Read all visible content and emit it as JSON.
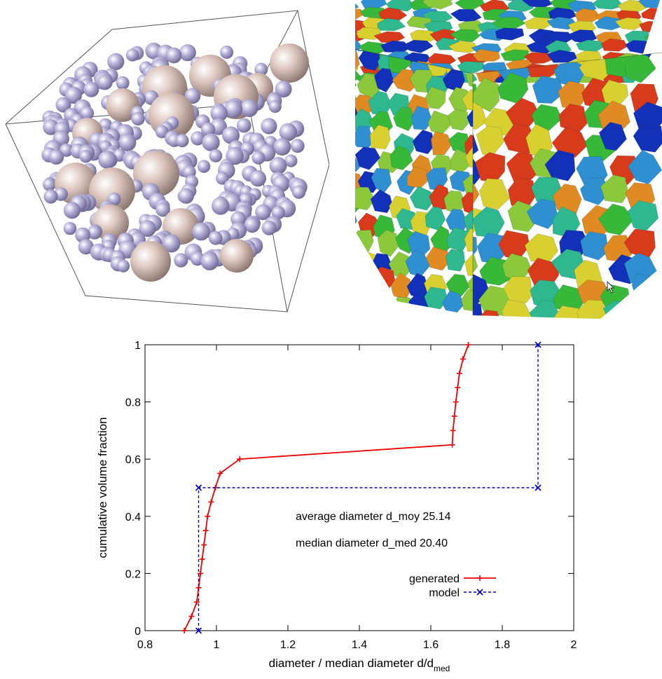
{
  "images": {
    "left": {
      "subject": "sphere-packing-3d-view",
      "colors": {
        "large": "#dcc4bc",
        "small": "#b4b0d8",
        "box": "#555555"
      }
    },
    "right": {
      "subject": "polycrystal-grain-cube",
      "colors": [
        "#1230b8",
        "#2f8fd0",
        "#2fb890",
        "#38b838",
        "#8cc83c",
        "#d8d030",
        "#e08a24",
        "#d83a1c"
      ]
    }
  },
  "chart_data": {
    "type": "line",
    "title": "",
    "xlabel": "diameter / median diameter d/d",
    "xlabel_sub": "med",
    "ylabel": "cumulative volume fraction",
    "xlim": [
      0.8,
      2
    ],
    "ylim": [
      0,
      1
    ],
    "xticks": [
      0.8,
      1,
      1.2,
      1.4,
      1.6,
      1.8,
      2
    ],
    "yticks": [
      0,
      0.2,
      0.4,
      0.6,
      0.8,
      1
    ],
    "xtick_labels": [
      "0.8",
      "1",
      "1.2",
      "1.4",
      "1.6",
      "1.8",
      "2"
    ],
    "ytick_labels": [
      "0",
      "0.2",
      "0.4",
      "0.6",
      "0.8",
      "1"
    ],
    "grid": false,
    "legend_position": "lower-right",
    "annotations": [
      "average diameter  d_moy 25.14",
      "median diameter  d_med 20.40"
    ],
    "series": [
      {
        "name": "generated",
        "color": "#ee0000",
        "style": "solid",
        "marker": "plus",
        "x": [
          0.91,
          0.93,
          0.945,
          0.95,
          0.955,
          0.96,
          0.965,
          0.97,
          0.975,
          0.985,
          0.997,
          1.01,
          1.065,
          1.66,
          1.662,
          1.666,
          1.67,
          1.675,
          1.68,
          1.69,
          1.705
        ],
        "y": [
          0.0,
          0.05,
          0.1,
          0.15,
          0.2,
          0.25,
          0.3,
          0.35,
          0.4,
          0.45,
          0.5,
          0.55,
          0.6,
          0.65,
          0.7,
          0.75,
          0.8,
          0.85,
          0.9,
          0.95,
          1.0
        ]
      },
      {
        "name": "model",
        "color": "#0000cc",
        "style": "dashed",
        "marker": "cross",
        "x": [
          0.95,
          0.95,
          1.9,
          1.9
        ],
        "y": [
          0.0,
          0.5,
          0.5,
          1.0
        ]
      }
    ]
  }
}
